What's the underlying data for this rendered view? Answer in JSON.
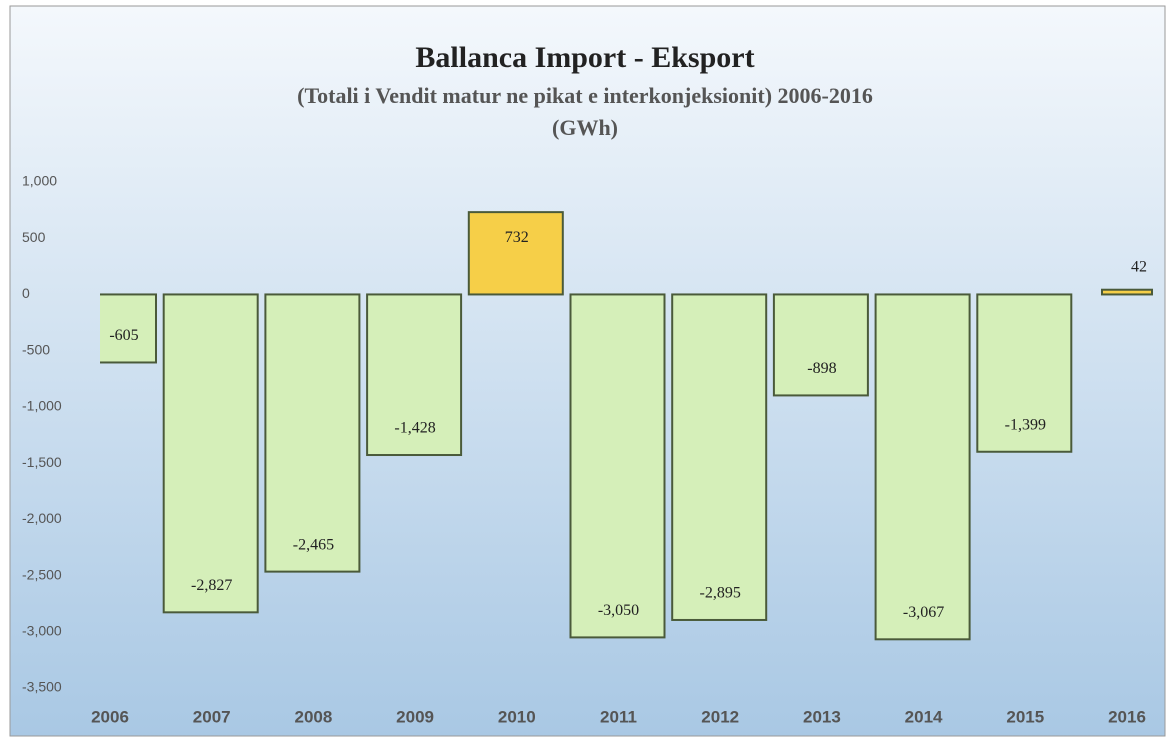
{
  "chart_data": {
    "type": "bar",
    "title": "Ballanca Import - Eksport",
    "subtitle": "(Totali i Vendit matur ne pikat e interkonjeksionit) 2006-2016",
    "unit_label": "(GWh)",
    "categories": [
      "2006",
      "2007",
      "2008",
      "2009",
      "2010",
      "2011",
      "2012",
      "2013",
      "2014",
      "2015",
      "2016"
    ],
    "values": [
      -605,
      -2827,
      -2465,
      -1428,
      732,
      -3050,
      -2895,
      -898,
      -3067,
      -1399,
      42
    ],
    "value_labels": [
      "-605",
      "-2,827",
      "-2,465",
      "-1,428",
      "732",
      "-3,050",
      "-2,895",
      "-898",
      "-3,067",
      "-1,399",
      "42"
    ],
    "negative_color": "#d5efb9",
    "positive_color": "#f6cf48",
    "ylim": [
      -3500,
      1000
    ],
    "yticks": [
      {
        "value": -3500,
        "label": "-3,500"
      },
      {
        "value": -3000,
        "label": "-3,000"
      },
      {
        "value": -2500,
        "label": "-2,500"
      },
      {
        "value": -2000,
        "label": "-2,000"
      },
      {
        "value": -1500,
        "label": "-1,500"
      },
      {
        "value": -1000,
        "label": "-1,000"
      },
      -500,
      0,
      500,
      {
        "value": 1000,
        "label": "1,000"
      }
    ],
    "grid": false
  }
}
